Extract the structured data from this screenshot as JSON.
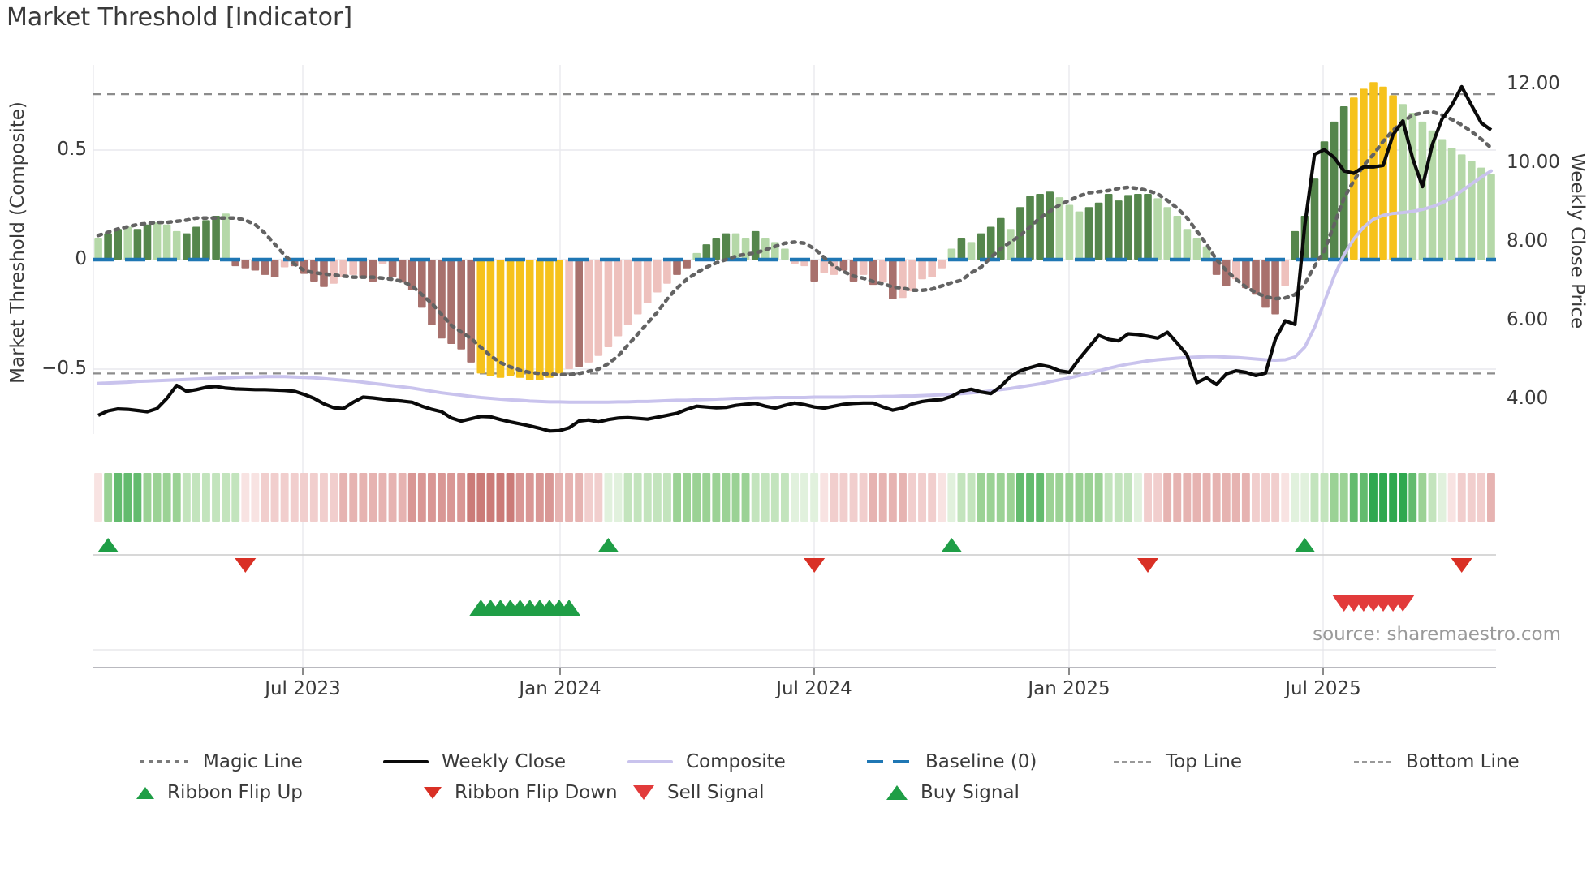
{
  "title": "Market Threshold [Indicator]",
  "source": "source: sharemaestro.com",
  "axes": {
    "left": {
      "label": "Market Threshold (Composite)",
      "ticks": [
        "0.5",
        "0",
        "−0.5"
      ]
    },
    "right": {
      "label": "Weekly Close Price",
      "ticks": [
        "12.00",
        "10.00",
        "8.00",
        "6.00",
        "4.00"
      ]
    },
    "x": {
      "ticks": [
        "Jul 2023",
        "Jan 2024",
        "Jul 2024",
        "Jan 2025",
        "Jul 2025"
      ]
    }
  },
  "legend": {
    "magic_line": "Magic Line",
    "weekly_close": "Weekly Close",
    "composite": "Composite",
    "baseline": "Baseline (0)",
    "top_line": "Top Line",
    "bottom_line": "Bottom Line",
    "ribbon_flip_up": "Ribbon Flip Up",
    "ribbon_flip_down": "Ribbon Flip Down",
    "sell_signal": "Sell Signal",
    "buy_signal": "Buy Signal"
  },
  "colors": {
    "bar_light_green": "#b5d8a8",
    "bar_dark_green": "#55864c",
    "bar_yellow": "#f6c21b",
    "bar_light_pink": "#eec1bd",
    "bar_maroon": "#a8716d",
    "ribbon_greens": [
      "#e1f1dd",
      "#c3e4bd",
      "#9bd295",
      "#63bb6e",
      "#2fa84f"
    ],
    "ribbon_reds": [
      "#f8e3e2",
      "#f1cecd",
      "#e6b3b1",
      "#d99795",
      "#cb7b78"
    ],
    "weekly_close": "#0a0a0a",
    "composite": "#c9c3ed",
    "magic_line": "#636363",
    "baseline": "#1f77b4",
    "top_bottom_line": "#8c8c8c",
    "grid": "#e9e9ee",
    "flip_up_green": "#1f9e46",
    "flip_down_red": "#d93025",
    "sell_red": "#e23b3b",
    "buy_green": "#1f9e46",
    "text": "#3a3a3a",
    "muted_text": "#9a9a9a"
  },
  "chart_data": {
    "type": "bar",
    "title": "Market Threshold [Indicator]",
    "xlabel": "",
    "ylabel_left": "Market Threshold (Composite)",
    "ylabel_right": "Weekly Close Price",
    "left_axis_ticks": [
      0.5,
      0,
      -0.5
    ],
    "right_axis_ticks": [
      12.0,
      10.0,
      8.0,
      6.0,
      4.0
    ],
    "x_tick_labels": [
      "Jul 2023",
      "Jan 2024",
      "Jul 2024",
      "Jan 2025",
      "Jul 2025"
    ],
    "baseline": 0,
    "top_line": 0.755,
    "bottom_line": -0.52,
    "bar_values": [
      0.1,
      0.12,
      0.14,
      0.15,
      0.14,
      0.16,
      0.17,
      0.16,
      0.13,
      0.12,
      0.15,
      0.18,
      0.2,
      0.21,
      -0.03,
      -0.04,
      -0.05,
      -0.07,
      -0.08,
      -0.035,
      -0.03,
      -0.065,
      -0.1,
      -0.125,
      -0.11,
      -0.08,
      -0.07,
      -0.085,
      -0.1,
      -0.02,
      -0.08,
      -0.105,
      -0.14,
      -0.22,
      -0.3,
      -0.36,
      -0.385,
      -0.41,
      -0.47,
      -0.52,
      -0.53,
      -0.54,
      -0.53,
      -0.54,
      -0.55,
      -0.55,
      -0.54,
      -0.52,
      -0.5,
      -0.49,
      -0.47,
      -0.44,
      -0.4,
      -0.35,
      -0.3,
      -0.25,
      -0.2,
      -0.15,
      -0.11,
      -0.07,
      -0.04,
      0.03,
      0.07,
      0.1,
      0.12,
      0.12,
      0.1,
      0.13,
      0.1,
      0.08,
      0.05,
      -0.02,
      -0.03,
      -0.1,
      -0.06,
      -0.07,
      -0.05,
      -0.1,
      -0.07,
      -0.115,
      -0.105,
      -0.18,
      -0.175,
      -0.145,
      -0.09,
      -0.08,
      -0.04,
      0.05,
      0.1,
      0.08,
      0.12,
      0.15,
      0.19,
      0.14,
      0.24,
      0.29,
      0.3,
      0.31,
      0.285,
      0.25,
      0.22,
      0.24,
      0.26,
      0.3,
      0.27,
      0.295,
      0.3,
      0.3,
      0.28,
      0.24,
      0.2,
      0.14,
      0.1,
      0.06,
      -0.07,
      -0.12,
      -0.09,
      -0.13,
      -0.16,
      -0.22,
      -0.25,
      -0.12,
      0.13,
      0.2,
      0.37,
      0.54,
      0.63,
      0.7,
      0.74,
      0.78,
      0.81,
      0.79,
      0.75,
      0.71,
      0.67,
      0.63,
      0.59,
      0.55,
      0.51,
      0.48,
      0.45,
      0.42,
      0.39
    ],
    "bar_colors": [
      "lg",
      "dg",
      "dg",
      "lg",
      "dg",
      "dg",
      "lg",
      "lg",
      "lg",
      "dg",
      "dg",
      "dg",
      "dg",
      "lg",
      "mr",
      "mr",
      "mr",
      "mr",
      "mr",
      "lp",
      "mr",
      "mr",
      "mr",
      "mr",
      "lp",
      "lp",
      "lp",
      "mr",
      "mr",
      "lp",
      "mr",
      "mr",
      "mr",
      "mr",
      "mr",
      "mr",
      "mr",
      "mr",
      "mr",
      "y",
      "y",
      "y",
      "y",
      "y",
      "y",
      "y",
      "y",
      "y",
      "lp",
      "mr",
      "lp",
      "lp",
      "lp",
      "lp",
      "lp",
      "lp",
      "lp",
      "lp",
      "lp",
      "mr",
      "mr",
      "lg",
      "dg",
      "dg",
      "dg",
      "lg",
      "lg",
      "dg",
      "lg",
      "lg",
      "lg",
      "lp",
      "lp",
      "mr",
      "lp",
      "lp",
      "mr",
      "mr",
      "lp",
      "mr",
      "lp",
      "mr",
      "lp",
      "lp",
      "lp",
      "lp",
      "lp",
      "lg",
      "dg",
      "lg",
      "dg",
      "dg",
      "dg",
      "lg",
      "dg",
      "dg",
      "dg",
      "dg",
      "lg",
      "lg",
      "lg",
      "dg",
      "dg",
      "dg",
      "dg",
      "dg",
      "dg",
      "dg",
      "lg",
      "lg",
      "lg",
      "lg",
      "lg",
      "lg",
      "mr",
      "mr",
      "lp",
      "mr",
      "mr",
      "mr",
      "mr",
      "lp",
      "dg",
      "dg",
      "dg",
      "dg",
      "dg",
      "dg",
      "y",
      "y",
      "y",
      "y",
      "y",
      "lg",
      "lg",
      "lg",
      "lg",
      "lg",
      "lg",
      "lg",
      "lg",
      "lg",
      "lg"
    ],
    "magic_line": [
      0.11,
      0.125,
      0.14,
      0.15,
      0.16,
      0.165,
      0.17,
      0.17,
      0.175,
      0.18,
      0.19,
      0.19,
      0.19,
      0.19,
      0.19,
      0.18,
      0.16,
      0.12,
      0.07,
      0.02,
      -0.02,
      -0.05,
      -0.06,
      -0.065,
      -0.07,
      -0.075,
      -0.08,
      -0.08,
      -0.08,
      -0.085,
      -0.09,
      -0.1,
      -0.12,
      -0.16,
      -0.2,
      -0.25,
      -0.3,
      -0.33,
      -0.36,
      -0.4,
      -0.44,
      -0.47,
      -0.49,
      -0.505,
      -0.515,
      -0.52,
      -0.523,
      -0.525,
      -0.525,
      -0.52,
      -0.51,
      -0.5,
      -0.475,
      -0.44,
      -0.39,
      -0.34,
      -0.29,
      -0.24,
      -0.18,
      -0.13,
      -0.09,
      -0.06,
      -0.035,
      -0.015,
      0.0,
      0.015,
      0.025,
      0.03,
      0.045,
      0.06,
      0.075,
      0.08,
      0.075,
      0.05,
      0.01,
      -0.03,
      -0.055,
      -0.075,
      -0.085,
      -0.1,
      -0.11,
      -0.125,
      -0.13,
      -0.14,
      -0.14,
      -0.135,
      -0.12,
      -0.105,
      -0.095,
      -0.06,
      -0.035,
      0.01,
      0.05,
      0.08,
      0.11,
      0.15,
      0.19,
      0.22,
      0.25,
      0.27,
      0.29,
      0.305,
      0.31,
      0.315,
      0.325,
      0.33,
      0.325,
      0.315,
      0.3,
      0.27,
      0.235,
      0.19,
      0.13,
      0.07,
      0.0,
      -0.05,
      -0.09,
      -0.125,
      -0.15,
      -0.17,
      -0.178,
      -0.175,
      -0.16,
      -0.11,
      -0.03,
      0.04,
      0.16,
      0.28,
      0.36,
      0.43,
      0.48,
      0.54,
      0.59,
      0.63,
      0.66,
      0.67,
      0.675,
      0.66,
      0.64,
      0.615,
      0.585,
      0.55,
      0.51
    ],
    "weekly_close": [
      3.57,
      3.68,
      3.73,
      3.72,
      3.69,
      3.66,
      3.74,
      4.0,
      4.33,
      4.18,
      4.22,
      4.28,
      4.3,
      4.26,
      4.24,
      4.23,
      4.22,
      4.22,
      4.21,
      4.2,
      4.18,
      4.1,
      4.0,
      3.86,
      3.76,
      3.74,
      3.9,
      4.03,
      4.01,
      3.98,
      3.95,
      3.93,
      3.9,
      3.8,
      3.72,
      3.66,
      3.5,
      3.42,
      3.48,
      3.54,
      3.53,
      3.46,
      3.4,
      3.35,
      3.3,
      3.24,
      3.17,
      3.18,
      3.25,
      3.42,
      3.45,
      3.4,
      3.46,
      3.5,
      3.51,
      3.49,
      3.47,
      3.52,
      3.57,
      3.62,
      3.72,
      3.8,
      3.78,
      3.76,
      3.77,
      3.82,
      3.85,
      3.87,
      3.8,
      3.75,
      3.82,
      3.88,
      3.84,
      3.78,
      3.75,
      3.8,
      3.85,
      3.87,
      3.88,
      3.88,
      3.78,
      3.7,
      3.75,
      3.86,
      3.92,
      3.95,
      3.97,
      4.05,
      4.18,
      4.23,
      4.16,
      4.12,
      4.3,
      4.55,
      4.7,
      4.78,
      4.85,
      4.8,
      4.7,
      4.66,
      5.0,
      5.3,
      5.6,
      5.5,
      5.46,
      5.64,
      5.62,
      5.58,
      5.53,
      5.68,
      5.4,
      5.1,
      4.4,
      4.52,
      4.35,
      4.62,
      4.7,
      4.66,
      4.58,
      4.64,
      5.5,
      5.97,
      5.88,
      8.4,
      10.2,
      10.32,
      10.12,
      9.78,
      9.72,
      9.88,
      9.88,
      9.92,
      10.7,
      11.05,
      10.1,
      9.38,
      10.45,
      11.1,
      11.45,
      11.92,
      11.45,
      11.0,
      10.82
    ],
    "composite": [
      4.38,
      4.39,
      4.4,
      4.41,
      4.43,
      4.44,
      4.45,
      4.46,
      4.47,
      4.48,
      4.49,
      4.5,
      4.51,
      4.52,
      4.53,
      4.54,
      4.54,
      4.55,
      4.55,
      4.55,
      4.54,
      4.53,
      4.52,
      4.5,
      4.48,
      4.46,
      4.44,
      4.41,
      4.38,
      4.35,
      4.32,
      4.29,
      4.26,
      4.22,
      4.18,
      4.14,
      4.11,
      4.08,
      4.05,
      4.02,
      4.0,
      3.98,
      3.96,
      3.95,
      3.93,
      3.92,
      3.91,
      3.91,
      3.9,
      3.9,
      3.9,
      3.9,
      3.9,
      3.91,
      3.91,
      3.92,
      3.92,
      3.93,
      3.94,
      3.95,
      3.95,
      3.96,
      3.97,
      3.98,
      3.99,
      4.0,
      4.0,
      4.01,
      4.01,
      4.02,
      4.02,
      4.02,
      4.02,
      4.03,
      4.03,
      4.03,
      4.03,
      4.04,
      4.04,
      4.04,
      4.05,
      4.05,
      4.06,
      4.06,
      4.07,
      4.08,
      4.09,
      4.1,
      4.12,
      4.14,
      4.16,
      4.19,
      4.22,
      4.25,
      4.29,
      4.33,
      4.37,
      4.42,
      4.47,
      4.52,
      4.58,
      4.64,
      4.7,
      4.76,
      4.82,
      4.87,
      4.91,
      4.95,
      4.98,
      5.0,
      5.02,
      5.04,
      5.05,
      5.06,
      5.06,
      5.05,
      5.04,
      5.02,
      5.0,
      4.98,
      4.97,
      4.98,
      5.05,
      5.3,
      5.8,
      6.45,
      7.1,
      7.65,
      8.05,
      8.35,
      8.55,
      8.65,
      8.7,
      8.72,
      8.75,
      8.8,
      8.87,
      8.97,
      9.1,
      9.27,
      9.45,
      9.62,
      9.78
    ],
    "ribbon": [
      -1,
      3,
      4,
      4,
      4,
      3,
      3,
      3,
      3,
      2,
      2,
      2,
      2,
      2,
      2,
      -1,
      -1,
      -2,
      -2,
      -2,
      -2,
      -2,
      -2,
      -2,
      -2,
      -3,
      -3,
      -3,
      -3,
      -3,
      -3,
      -3,
      -4,
      -4,
      -4,
      -4,
      -4,
      -4,
      -5,
      -5,
      -5,
      -5,
      -5,
      -4,
      -4,
      -4,
      -4,
      -3,
      -3,
      -3,
      -2,
      -2,
      1,
      1,
      2,
      2,
      2,
      2,
      2,
      3,
      3,
      3,
      3,
      3,
      3,
      3,
      3,
      2,
      2,
      2,
      2,
      1,
      1,
      1,
      -1,
      -2,
      -2,
      -2,
      -2,
      -3,
      -3,
      -3,
      -3,
      -2,
      -2,
      -2,
      -1,
      1,
      2,
      2,
      3,
      3,
      3,
      3,
      4,
      4,
      4,
      3,
      3,
      3,
      3,
      3,
      3,
      2,
      2,
      2,
      1,
      -2,
      -2,
      -3,
      -3,
      -3,
      -3,
      -3,
      -3,
      -3,
      -3,
      -3,
      -2,
      -2,
      -2,
      -1,
      1,
      1,
      2,
      2,
      3,
      3,
      4,
      4,
      5,
      5,
      5,
      5,
      4,
      3,
      2,
      1,
      -1,
      -2,
      -2,
      -2,
      -3
    ],
    "signals": {
      "ribbon_flip_up": [
        1,
        52,
        87,
        123
      ],
      "ribbon_flip_down": [
        15,
        73,
        107,
        139
      ],
      "buy": [
        39,
        40,
        41,
        42,
        43,
        44,
        45,
        46,
        47,
        48
      ],
      "sell": [
        127,
        128,
        129,
        130,
        131,
        132,
        133
      ]
    }
  }
}
